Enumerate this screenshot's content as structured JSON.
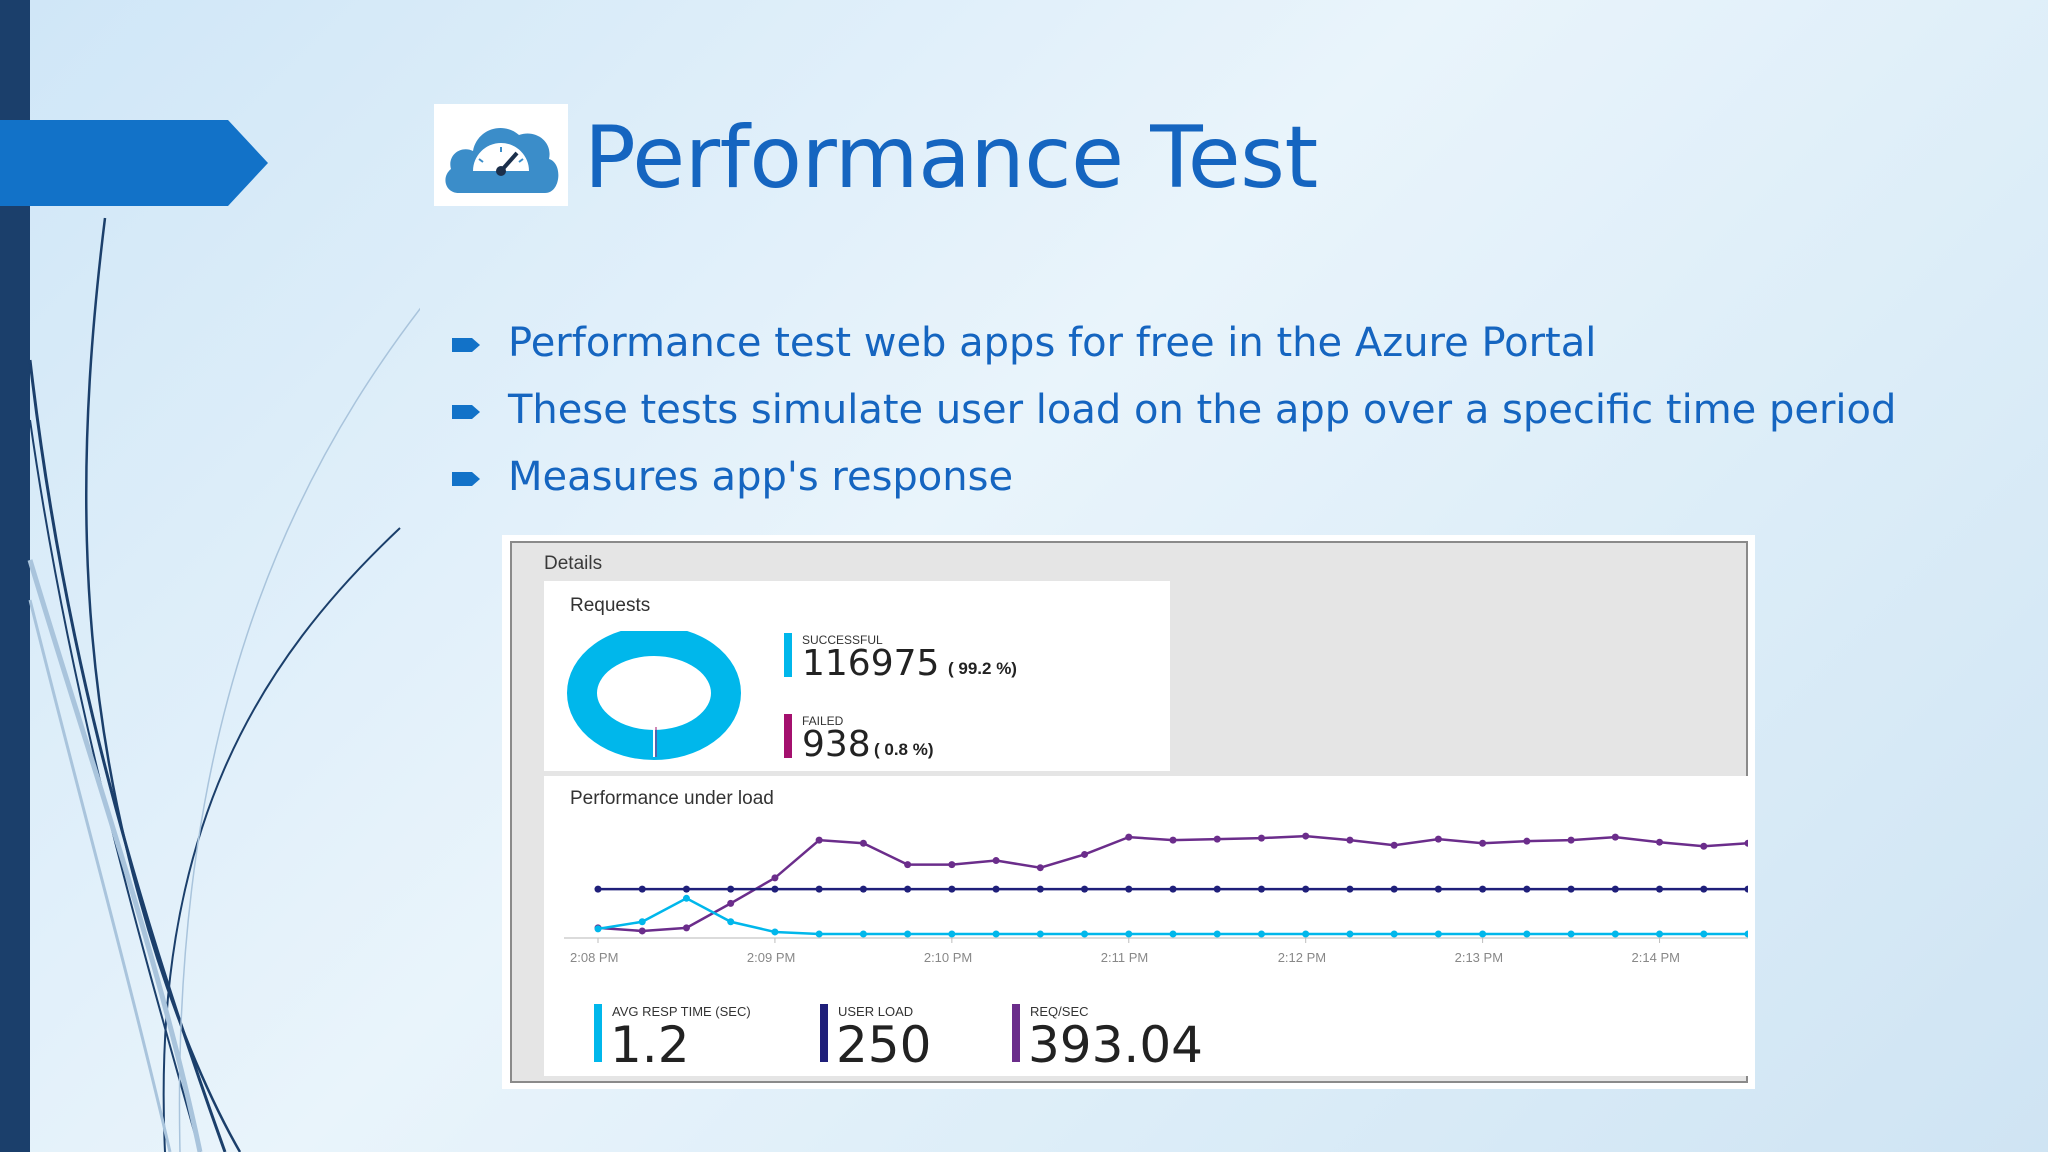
{
  "slide": {
    "title": "Performance Test",
    "logo_icon": "cloud-speedometer-icon",
    "accent_color": "#1565c0",
    "bullet_icon": "arrow-bullet-icon",
    "bullets": [
      "Performance test web apps for free in the Azure Portal",
      "These tests simulate user load on the app over a specific time period",
      "Measures app's response"
    ]
  },
  "screenshot": {
    "details_label": "Details",
    "requests": {
      "title": "Requests",
      "successful": {
        "label": "SUCCESSFUL",
        "value": "116975",
        "percent": "( 99.2 %)",
        "color": "#00b7eb"
      },
      "failed": {
        "label": "FAILED",
        "value": "938",
        "percent": "( 0.8 %)",
        "color": "#a4106e"
      }
    },
    "performance": {
      "title": "Performance under load",
      "metrics": [
        {
          "label": "AVG RESP TIME (SEC)",
          "value": "1.2",
          "color": "#00b7eb"
        },
        {
          "label": "USER LOAD",
          "value": "250",
          "color": "#1f1f7a"
        },
        {
          "label": "REQ/SEC",
          "value": "393.04",
          "color": "#6b2d8b"
        }
      ]
    }
  },
  "chart_data": {
    "type": "line",
    "title": "Performance under load",
    "x": [
      "2:08 PM",
      "",
      "",
      "",
      "2:09 PM",
      "",
      "",
      "",
      "2:10 PM",
      "",
      "",
      "",
      "2:11 PM",
      "",
      "",
      "",
      "2:12 PM",
      "",
      "",
      "",
      "2:13 PM",
      "",
      "",
      "",
      "2:14 PM",
      "",
      ""
    ],
    "tick_labels": [
      "2:08 PM",
      "2:09 PM",
      "2:10 PM",
      "2:11 PM",
      "2:12 PM",
      "2:13 PM",
      "2:14 PM"
    ],
    "grid": false,
    "ylim": [
      0,
      1
    ],
    "series": [
      {
        "name": "REQ/SEC",
        "color": "#6b2d8b",
        "values": [
          0.06,
          0.03,
          0.06,
          0.3,
          0.55,
          0.92,
          0.89,
          0.68,
          0.68,
          0.72,
          0.65,
          0.78,
          0.95,
          0.92,
          0.93,
          0.94,
          0.96,
          0.92,
          0.87,
          0.93,
          0.89,
          0.91,
          0.92,
          0.95,
          0.9,
          0.86,
          0.89
        ]
      },
      {
        "name": "USER LOAD",
        "color": "#1f1f7a",
        "values": [
          0.44,
          0.44,
          0.44,
          0.44,
          0.44,
          0.44,
          0.44,
          0.44,
          0.44,
          0.44,
          0.44,
          0.44,
          0.44,
          0.44,
          0.44,
          0.44,
          0.44,
          0.44,
          0.44,
          0.44,
          0.44,
          0.44,
          0.44,
          0.44,
          0.44,
          0.44,
          0.44
        ]
      },
      {
        "name": "AVG RESP TIME (SEC)",
        "color": "#00b7eb",
        "values": [
          0.05,
          0.12,
          0.35,
          0.12,
          0.02,
          0.0,
          0.0,
          0.0,
          0.0,
          0.0,
          0.0,
          0.0,
          0.0,
          0.0,
          0.0,
          0.0,
          0.0,
          0.0,
          0.0,
          0.0,
          0.0,
          0.0,
          0.0,
          0.0,
          0.0,
          0.0,
          0.0
        ]
      }
    ]
  }
}
